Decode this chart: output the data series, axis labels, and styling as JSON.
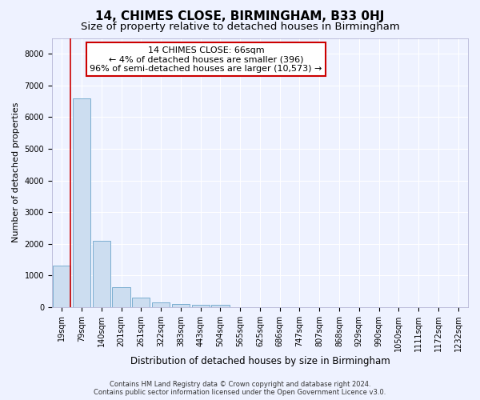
{
  "title1": "14, CHIMES CLOSE, BIRMINGHAM, B33 0HJ",
  "title2": "Size of property relative to detached houses in Birmingham",
  "xlabel": "Distribution of detached houses by size in Birmingham",
  "ylabel": "Number of detached properties",
  "bar_color": "#ccddf0",
  "bar_edge_color": "#7aaed0",
  "background_color": "#eef2ff",
  "plot_bg_color": "#eef2ff",
  "grid_color": "#ffffff",
  "categories": [
    "19sqm",
    "79sqm",
    "140sqm",
    "201sqm",
    "261sqm",
    "322sqm",
    "383sqm",
    "443sqm",
    "504sqm",
    "565sqm",
    "625sqm",
    "686sqm",
    "747sqm",
    "807sqm",
    "868sqm",
    "929sqm",
    "990sqm",
    "1050sqm",
    "1111sqm",
    "1172sqm",
    "1232sqm"
  ],
  "values": [
    1300,
    6600,
    2100,
    630,
    300,
    150,
    100,
    80,
    80,
    0,
    0,
    0,
    0,
    0,
    0,
    0,
    0,
    0,
    0,
    0,
    0
  ],
  "highlight_bar_index": 0,
  "highlight_color": "#cc0000",
  "annotation_title": "14 CHIMES CLOSE: 66sqm",
  "annotation_line2": "← 4% of detached houses are smaller (396)",
  "annotation_line3": "96% of semi-detached houses are larger (10,573) →",
  "annotation_box_facecolor": "#ffffff",
  "annotation_box_edgecolor": "#cc0000",
  "ylim": [
    0,
    8500
  ],
  "yticks": [
    0,
    1000,
    2000,
    3000,
    4000,
    5000,
    6000,
    7000,
    8000
  ],
  "footnote1": "Contains HM Land Registry data © Crown copyright and database right 2024.",
  "footnote2": "Contains public sector information licensed under the Open Government Licence v3.0.",
  "title1_fontsize": 11,
  "title2_fontsize": 9.5,
  "tick_fontsize": 7,
  "ylabel_fontsize": 8,
  "xlabel_fontsize": 8.5,
  "annotation_fontsize": 8,
  "footnote_fontsize": 6
}
